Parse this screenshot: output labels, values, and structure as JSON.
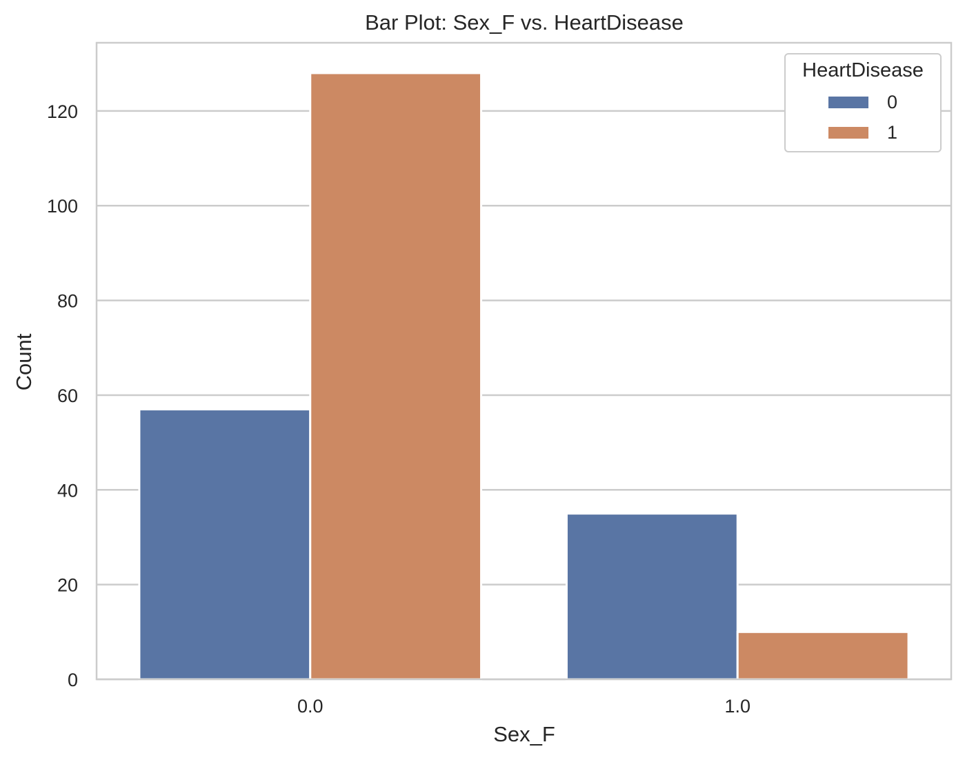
{
  "chart_data": {
    "type": "bar",
    "title": "Bar Plot: Sex_F vs. HeartDisease",
    "xlabel": "Sex_F",
    "ylabel": "Count",
    "categories": [
      "0.0",
      "1.0"
    ],
    "series": [
      {
        "name": "0",
        "values": [
          57,
          35
        ],
        "color": "#5975a4"
      },
      {
        "name": "1",
        "values": [
          128,
          10
        ],
        "color": "#cc8963"
      }
    ],
    "ylim": [
      0,
      134.4
    ],
    "yticks": [
      0,
      20,
      40,
      60,
      80,
      100,
      120
    ],
    "grid": true,
    "legend": {
      "title": "HeartDisease",
      "placement": "top-right"
    }
  }
}
